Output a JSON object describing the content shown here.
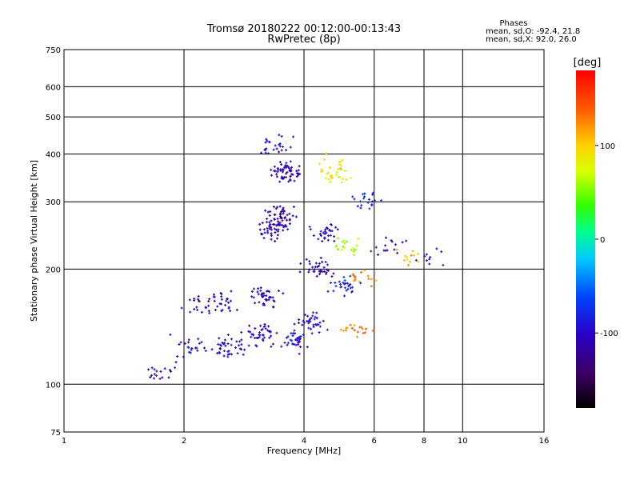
{
  "chart_data": {
    "type": "scatter",
    "title": "Tromsø 20180222 00:12:00-00:13:43",
    "subtitle": "RwPretec (8p)",
    "xlabel": "Frequency [MHz]",
    "ylabel": "Stationary phase Virtual Height [km]",
    "x_scale": "log",
    "y_scale": "log",
    "xlim": [
      1,
      16
    ],
    "ylim": [
      75,
      750
    ],
    "x_ticks": [
      1,
      2,
      4,
      6,
      8,
      10,
      16
    ],
    "y_ticks": [
      75,
      100,
      200,
      300,
      400,
      500,
      600,
      750
    ],
    "grid": true,
    "phases_box": {
      "heading": "Phases",
      "line1": "mean, sd,O: -92.4, 21.8",
      "line2": "mean, sd,X:  92.0, 26.0"
    },
    "colorbar": {
      "label": "[deg]",
      "range": [
        -180,
        180
      ],
      "ticks": [
        100,
        0,
        -100
      ]
    },
    "clusters": [
      {
        "x": 1.75,
        "y": 108,
        "phase": -105,
        "n": 18
      },
      {
        "x": 2.05,
        "y": 125,
        "phase": -100,
        "n": 22
      },
      {
        "x": 2.2,
        "y": 162,
        "phase": -110,
        "n": 20
      },
      {
        "x": 2.5,
        "y": 165,
        "phase": -105,
        "n": 25
      },
      {
        "x": 2.6,
        "y": 125,
        "phase": -95,
        "n": 40
      },
      {
        "x": 3.1,
        "y": 135,
        "phase": -100,
        "n": 40
      },
      {
        "x": 3.2,
        "y": 170,
        "phase": -105,
        "n": 40
      },
      {
        "x": 3.3,
        "y": 255,
        "phase": -110,
        "n": 45
      },
      {
        "x": 3.5,
        "y": 275,
        "phase": -115,
        "n": 45
      },
      {
        "x": 3.6,
        "y": 360,
        "phase": -105,
        "n": 60
      },
      {
        "x": 3.4,
        "y": 420,
        "phase": -100,
        "n": 25
      },
      {
        "x": 3.8,
        "y": 130,
        "phase": -90,
        "n": 35
      },
      {
        "x": 4.2,
        "y": 145,
        "phase": -95,
        "n": 35
      },
      {
        "x": 4.3,
        "y": 200,
        "phase": -100,
        "n": 35
      },
      {
        "x": 4.5,
        "y": 250,
        "phase": -95,
        "n": 30
      },
      {
        "x": 4.8,
        "y": 350,
        "phase": 80,
        "n": 25
      },
      {
        "x": 4.8,
        "y": 380,
        "phase": 95,
        "n": 12
      },
      {
        "x": 5.0,
        "y": 180,
        "phase": -80,
        "n": 30
      },
      {
        "x": 5.2,
        "y": 230,
        "phase": 60,
        "n": 20
      },
      {
        "x": 5.4,
        "y": 140,
        "phase": 130,
        "n": 18
      },
      {
        "x": 5.5,
        "y": 190,
        "phase": 120,
        "n": 15
      },
      {
        "x": 5.7,
        "y": 300,
        "phase": -80,
        "n": 20
      },
      {
        "x": 6.5,
        "y": 230,
        "phase": -100,
        "n": 15
      },
      {
        "x": 7.3,
        "y": 215,
        "phase": 110,
        "n": 12
      },
      {
        "x": 8.3,
        "y": 210,
        "phase": -95,
        "n": 10
      }
    ]
  }
}
